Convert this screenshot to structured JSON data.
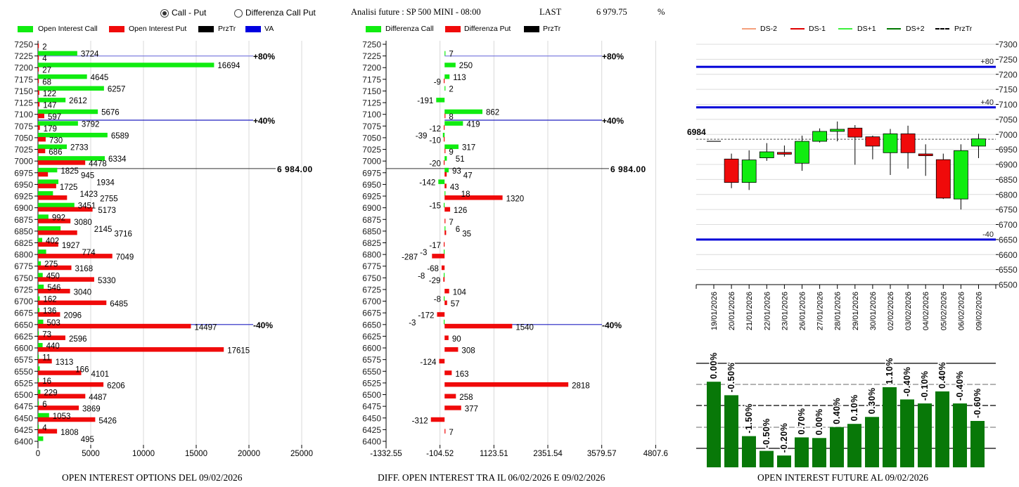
{
  "header": {
    "mode_options": [
      {
        "label": "Call - Put",
        "selected": true
      },
      {
        "label": "Differenza Call Put",
        "selected": false
      }
    ],
    "analysis_title": "Analisi future : SP 500 MINI - 08:00",
    "last_label": "LAST",
    "last_value": "6 979.75",
    "pct_label": "%"
  },
  "colors": {
    "call": "#10ec10",
    "put": "#f00a0a",
    "przTr": "#000000",
    "va": "#0000e0",
    "future_bar": "#087808"
  },
  "chart_data": [
    {
      "type": "bar",
      "orientation": "horizontal",
      "title": "OPEN INTEREST OPTIONS DEL 09/02/2026",
      "legend": [
        "Open Interest Call",
        "Open Interest Put",
        "PrzTr",
        "VA"
      ],
      "legend_position": "top",
      "categories": [
        7250,
        7225,
        7200,
        7175,
        7150,
        7125,
        7100,
        7075,
        7050,
        7025,
        7000,
        6975,
        6950,
        6925,
        6900,
        6875,
        6850,
        6825,
        6800,
        6775,
        6750,
        6725,
        6700,
        6675,
        6650,
        6625,
        6600,
        6575,
        6550,
        6525,
        6500,
        6475,
        6450,
        6425,
        6400
      ],
      "series": [
        {
          "name": "Open Interest Call",
          "values": [
            null,
            3724,
            16694,
            4645,
            6257,
            2612,
            5676,
            3792,
            6589,
            2733,
            6334,
            1825,
            1934,
            1423,
            3451,
            992,
            2145,
            402,
            774,
            275,
            450,
            546,
            162,
            136,
            503,
            73,
            440,
            11,
            166,
            16,
            229,
            6,
            1053,
            4,
            495
          ]
        },
        {
          "name": "Open Interest Put",
          "values": [
            2,
            4,
            27,
            68,
            122,
            147,
            597,
            179,
            730,
            686,
            4478,
            945,
            1725,
            2755,
            5173,
            3080,
            3716,
            1927,
            7049,
            3168,
            5330,
            3040,
            6485,
            2096,
            14497,
            2596,
            17615,
            1313,
            4101,
            6206,
            4487,
            3869,
            5426,
            1808,
            null
          ]
        }
      ],
      "xlim": [
        0,
        25000
      ],
      "xticks": [
        "0",
        "5000",
        "10000",
        "15000",
        "20000",
        "25000"
      ],
      "grid": true,
      "levels": [
        {
          "label": "+80%",
          "strike": 7225
        },
        {
          "label": "+40%",
          "strike": 7087.5
        },
        {
          "label": "-40%",
          "strike": 6650
        }
      ],
      "przTr": {
        "label": "6 984.00",
        "value": 6984
      }
    },
    {
      "type": "bar",
      "orientation": "horizontal",
      "title": "DIFF. OPEN INTEREST TRA IL 06/02/2026 E 09/02/2026",
      "legend": [
        "Differenza Call",
        "Differenza Put",
        "PrzTr"
      ],
      "legend_position": "top",
      "categories": [
        7250,
        7225,
        7200,
        7175,
        7150,
        7125,
        7100,
        7075,
        7050,
        7025,
        7000,
        6975,
        6950,
        6925,
        6900,
        6875,
        6850,
        6825,
        6800,
        6775,
        6750,
        6725,
        6700,
        6675,
        6650,
        6625,
        6600,
        6575,
        6550,
        6525,
        6500,
        6475,
        6450,
        6425,
        6400
      ],
      "series": [
        {
          "name": "Differenza Call",
          "values": [
            null,
            7,
            250,
            113,
            2,
            -191,
            862,
            419,
            -39,
            317,
            51,
            93,
            -142,
            18,
            -15,
            null,
            6,
            null,
            -3,
            null,
            -8,
            null,
            -8,
            null,
            -3,
            null,
            null,
            null,
            null,
            null,
            null,
            null,
            null,
            null,
            null
          ]
        },
        {
          "name": "Differenza Put",
          "values": [
            null,
            null,
            null,
            -9,
            null,
            null,
            8,
            -12,
            -10,
            9,
            -20,
            47,
            43,
            1320,
            126,
            7,
            35,
            -17,
            -287,
            -68,
            -29,
            104,
            57,
            -172,
            1540,
            90,
            308,
            -124,
            163,
            2818,
            258,
            377,
            -312,
            7,
            null
          ]
        }
      ],
      "xlim": [
        -1332.55,
        4807.6
      ],
      "xticks": [
        "-1332.55",
        "-104.52",
        "1123.51",
        "2351.54",
        "3579.57",
        "4807.6"
      ],
      "grid": true,
      "levels": [
        {
          "label": "+80%",
          "strike": 7225
        },
        {
          "label": "+40%",
          "strike": 7087.5
        },
        {
          "label": "-40%",
          "strike": 6650
        }
      ],
      "przTr": {
        "label": "6 984.00",
        "value": 6984
      }
    },
    {
      "type": "candlestick",
      "legend": [
        {
          "label": "DS-2",
          "color": "#f4a07c"
        },
        {
          "label": "DS-1",
          "color": "#e00000"
        },
        {
          "label": "DS+1",
          "color": "#3cf03c"
        },
        {
          "label": "DS+2",
          "color": "#007800"
        },
        {
          "label": "PrzTr",
          "color": "#000000",
          "dashed": true
        }
      ],
      "legend_position": "top",
      "dates": [
        "19/01/2026",
        "20/01/2026",
        "21/01/2026",
        "22/01/2026",
        "23/01/2026",
        "26/01/2026",
        "27/01/2026",
        "28/01/2026",
        "29/01/2026",
        "30/01/2026",
        "02/02/2026",
        "03/02/2026",
        "04/02/2026",
        "05/02/2026",
        "06/02/2026",
        "09/02/2026"
      ],
      "ohlc": [
        [
          6977,
          6977,
          6977,
          6977
        ],
        [
          6918,
          6936,
          6821,
          6840
        ],
        [
          6840,
          6947,
          6815,
          6915
        ],
        [
          6922,
          6971,
          6912,
          6942
        ],
        [
          6940,
          6963,
          6926,
          6934
        ],
        [
          6904,
          6996,
          6879,
          6977
        ],
        [
          6977,
          7020,
          6973,
          7010
        ],
        [
          7010,
          7043,
          6977,
          7017
        ],
        [
          7021,
          7031,
          6899,
          6991
        ],
        [
          6992,
          6996,
          6917,
          6961
        ],
        [
          6939,
          7018,
          6865,
          7002
        ],
        [
          7002,
          7029,
          6886,
          6939
        ],
        [
          6935,
          6967,
          6862,
          6929
        ],
        [
          6916,
          6936,
          6785,
          6788
        ],
        [
          6785,
          6967,
          6750,
          6946
        ],
        [
          6961,
          7002,
          6921,
          6985
        ]
      ],
      "ylim": [
        6500,
        7300
      ],
      "yticks": [
        "7300",
        "7250",
        "7200",
        "7150",
        "7100",
        "7050",
        "7000",
        "6950",
        "6900",
        "6850",
        "6800",
        "6750",
        "6700",
        "6650",
        "6600",
        "6550",
        "6500"
      ],
      "grid": true,
      "levels": [
        {
          "label": "+80",
          "value": 7225
        },
        {
          "label": "+40",
          "value": 7090
        },
        {
          "label": "-40",
          "value": 6650
        }
      ],
      "przTr": {
        "label": "6984",
        "value": 6984
      }
    },
    {
      "type": "bar",
      "title": "OPEN INTEREST FUTURE AL 09/02/2026",
      "values": [
        4.06,
        3.42,
        1.48,
        0.78,
        0.56,
        1.42,
        1.39,
        1.91,
        2.06,
        2.39,
        3.8,
        3.22,
        3.03,
        3.6,
        3.03,
        2.2
      ],
      "labels": [
        "0.00%",
        "-0.50%",
        "-1.50%",
        "-0.50%",
        "-0.20%",
        "0.70%",
        "0.00%",
        "0.40%",
        "0.10%",
        "0.30%",
        "1.10%",
        "-0.40%",
        "-0.10%",
        "0.40%",
        "-0.40%",
        "-0.60%"
      ],
      "grid": true
    }
  ]
}
